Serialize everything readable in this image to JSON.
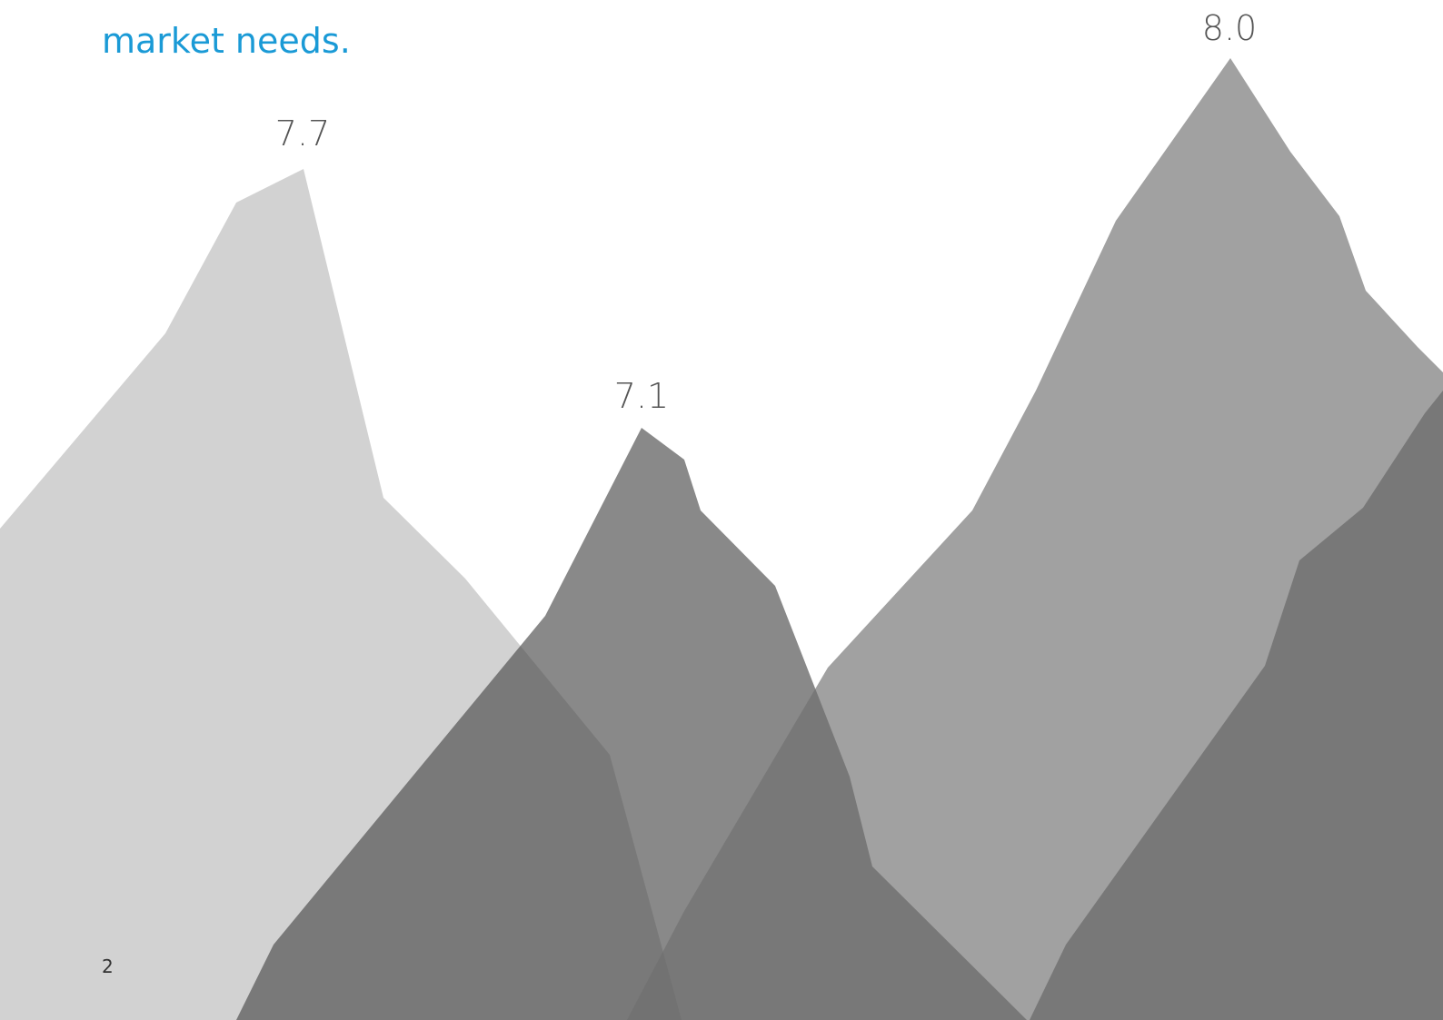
{
  "body": {
    "text": "market needs."
  },
  "peaks": [
    {
      "label": "7.7"
    },
    {
      "label": "7.1"
    },
    {
      "label": "8.0"
    }
  ],
  "footer": {
    "page_number": "2"
  }
}
